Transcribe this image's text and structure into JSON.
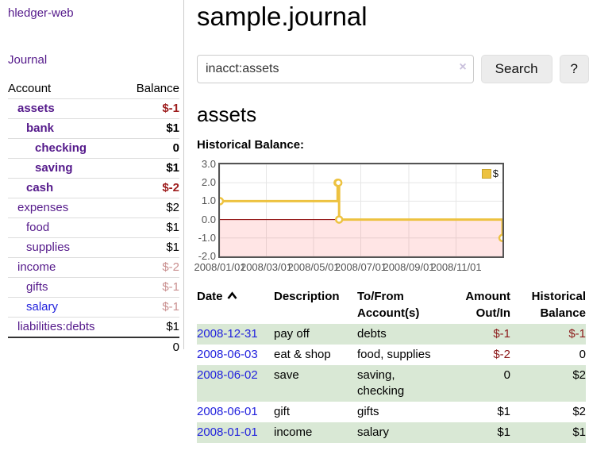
{
  "palette": {
    "link_purple": "#551a8b",
    "link_blue": "#2222dd",
    "negative_strong": "#9d1c1c",
    "negative_dim": "#c98f8f",
    "negative_table": "#8c1a1a",
    "row_stripe_green": "#d9e8d5",
    "chart_line": "#edc240",
    "chart_zero_line": "#8b0000",
    "chart_negative_fill": "#ffdddd",
    "chart_border": "#545454"
  },
  "sidebar": {
    "brand": "hledger-web",
    "nav_journal": "Journal",
    "accounts": {
      "col_account": "Account",
      "col_balance": "Balance",
      "rows": [
        {
          "name": "assets",
          "balance": "$-1"
        },
        {
          "name": "bank",
          "balance": "$1"
        },
        {
          "name": "checking",
          "balance": "0"
        },
        {
          "name": "saving",
          "balance": "$1"
        },
        {
          "name": "cash",
          "balance": "$-2"
        },
        {
          "name": "expenses",
          "balance": "$2"
        },
        {
          "name": "food",
          "balance": "$1"
        },
        {
          "name": "supplies",
          "balance": "$1"
        },
        {
          "name": "income",
          "balance": "$-2"
        },
        {
          "name": "gifts",
          "balance": "$-1"
        },
        {
          "name": "salary",
          "balance": "$-1"
        },
        {
          "name": "liabilities:debts",
          "balance": "$1"
        }
      ],
      "total": "0"
    }
  },
  "main": {
    "title": "sample.journal",
    "search": {
      "value": "inacct:assets",
      "clear": "×",
      "button": "Search",
      "help": "?"
    },
    "account_heading": "assets",
    "chart_title": "Historical Balance:"
  },
  "chart_data": {
    "type": "line",
    "steps": true,
    "title": "Historical Balance:",
    "legend": [
      {
        "label": "$",
        "color": "#edc240"
      }
    ],
    "legend_position": "top-right",
    "x": [
      "2008-01-01",
      "2008-06-01",
      "2008-06-02",
      "2008-06-03",
      "2008-12-31"
    ],
    "series": [
      {
        "name": "$",
        "values": [
          1,
          2,
          2,
          0,
          -1
        ]
      }
    ],
    "xrange": [
      "2008-01-01",
      "2008-12-31"
    ],
    "ylim": [
      -2,
      3
    ],
    "yticks": [
      "3.0",
      "2.0",
      "1.0",
      "0.0",
      "-1.0",
      "-2.0"
    ],
    "ytick_values": [
      3,
      2,
      1,
      0,
      -1,
      -2
    ],
    "xticks": [
      "2008/01/01",
      "2008/03/01",
      "2008/05/01",
      "2008/07/01",
      "2008/09/01",
      "2008/11/01"
    ],
    "grid": true,
    "zero_line": true,
    "negative_region_shaded": true
  },
  "register": {
    "headers": {
      "date": "Date",
      "description": "Description",
      "account": "To/From Account(s)",
      "amount": "Amount Out/In",
      "balance": "Historical Balance"
    },
    "rows": [
      {
        "date": "2008-12-31",
        "description": "pay off",
        "accounts": "debts",
        "amount": "$-1",
        "balance": "$-1"
      },
      {
        "date": "2008-06-03",
        "description": "eat & shop",
        "accounts": "food, supplies",
        "amount": "$-2",
        "balance": "0"
      },
      {
        "date": "2008-06-02",
        "description": "save",
        "accounts": "saving, checking",
        "amount": "0",
        "balance": "$2"
      },
      {
        "date": "2008-06-01",
        "description": "gift",
        "accounts": "gifts",
        "amount": "$1",
        "balance": "$2"
      },
      {
        "date": "2008-01-01",
        "description": "income",
        "accounts": "salary",
        "amount": "$1",
        "balance": "$1"
      }
    ]
  }
}
